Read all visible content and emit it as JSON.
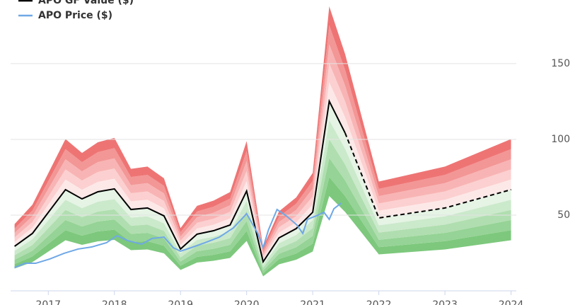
{
  "chart_data": {
    "type": "gf-value",
    "x": [
      2016.49,
      2016.76,
      2017.26,
      2017.51,
      2017.75,
      2018.0,
      2018.25,
      2018.5,
      2018.75,
      2019.0,
      2019.25,
      2019.5,
      2019.75,
      2020.0,
      2020.25,
      2020.49,
      2020.75,
      2021.0,
      2021.25,
      2021.49,
      2022.0,
      2023.0,
      2024.0
    ],
    "series": [
      {
        "name": "APO GF Value ($)",
        "color": "#000000",
        "values": [
          29.4,
          37.9,
          66.8,
          60.7,
          65.4,
          67.3,
          53.7,
          54.7,
          49.5,
          27.6,
          37.4,
          39.7,
          43.5,
          65.9,
          19.2,
          35.0,
          41.1,
          51.9,
          125.2,
          104.2,
          48.1,
          54.7,
          66.8
        ],
        "projected_from": 2021.49
      },
      {
        "name": "APO Price ($)",
        "color": "#6fa8e6",
        "x": [
          2016.49,
          2016.65,
          2016.81,
          2017.02,
          2017.24,
          2017.45,
          2017.66,
          2017.88,
          2018.04,
          2018.2,
          2018.41,
          2018.57,
          2018.75,
          2018.89,
          2019.0,
          2019.16,
          2019.37,
          2019.59,
          2019.8,
          2020.0,
          2020.17,
          2020.25,
          2020.33,
          2020.46,
          2020.6,
          2020.76,
          2020.85,
          2020.92,
          2021.08,
          2021.17,
          2021.25,
          2021.32,
          2021.43
        ],
        "values": [
          15.4,
          18.2,
          18.2,
          21.0,
          24.8,
          27.6,
          29.0,
          31.8,
          36.4,
          33.2,
          30.8,
          34.6,
          35.5,
          28.5,
          26.2,
          28.5,
          31.8,
          35.5,
          41.6,
          50.9,
          37.9,
          28.5,
          40.2,
          53.7,
          49.5,
          43.5,
          37.9,
          47.2,
          50.0,
          51.9,
          47.2,
          54.2,
          57.9
        ]
      }
    ],
    "bands": {
      "multipliers": [
        0.5,
        0.6,
        0.7,
        0.8,
        0.9,
        1.0,
        1.1,
        1.2,
        1.3,
        1.4,
        1.5
      ],
      "colors": [
        "#7dc87d",
        "#96d396",
        "#b0deb0",
        "#cbe9cb",
        "#e5f4e5",
        "#fde8e8",
        "#fcd0d0",
        "#f8b4b4",
        "#f39696",
        "#ee7474"
      ]
    },
    "xlim": [
      2016.43,
      2024.08
    ],
    "xticks": [
      2017,
      2018,
      2019,
      2020,
      2021,
      2022,
      2023,
      2024
    ],
    "ylim": [
      0,
      192
    ],
    "yticks": [
      50,
      100,
      150
    ],
    "grid": true
  }
}
